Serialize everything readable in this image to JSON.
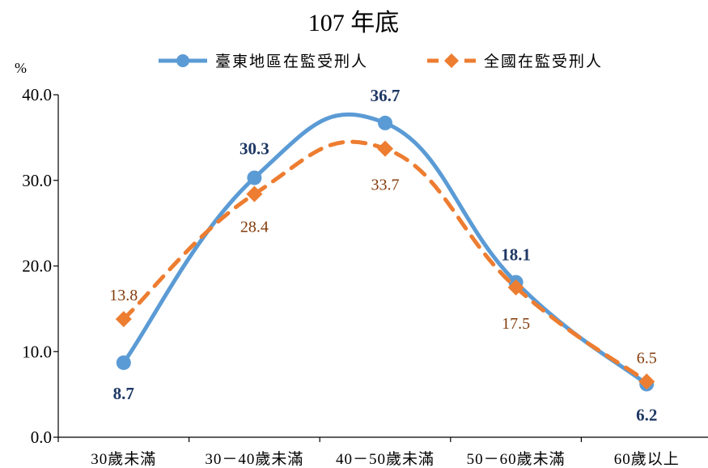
{
  "chart_data": {
    "type": "line",
    "title": "107 年底",
    "ylabel": "%",
    "xlabel": "",
    "categories": [
      "30歲未滿",
      "30－40歲未滿",
      "40－50歲未滿",
      "50－60歲未滿",
      "60歲以上"
    ],
    "ylim": [
      0,
      40
    ],
    "yticks": [
      "0.0",
      "10.0",
      "20.0",
      "30.0",
      "40.0"
    ],
    "grid": false,
    "legend_position": "top",
    "series": [
      {
        "name": "臺東地區在監受刑人",
        "values": [
          8.7,
          30.3,
          36.7,
          18.1,
          6.2
        ],
        "labels": [
          "8.7",
          "30.3",
          "36.7",
          "18.1",
          "6.2"
        ],
        "color": "#5B9BD5",
        "label_color": "#1F3864",
        "line_style": "solid",
        "marker": "circle",
        "smooth": true
      },
      {
        "name": "全國在監受刑人",
        "values": [
          13.8,
          28.4,
          33.7,
          17.5,
          6.5
        ],
        "labels": [
          "13.8",
          "28.4",
          "33.7",
          "17.5",
          "6.5"
        ],
        "color": "#ED7D31",
        "label_color": "#843C0C",
        "line_style": "dashed",
        "marker": "diamond",
        "smooth": true
      }
    ]
  }
}
